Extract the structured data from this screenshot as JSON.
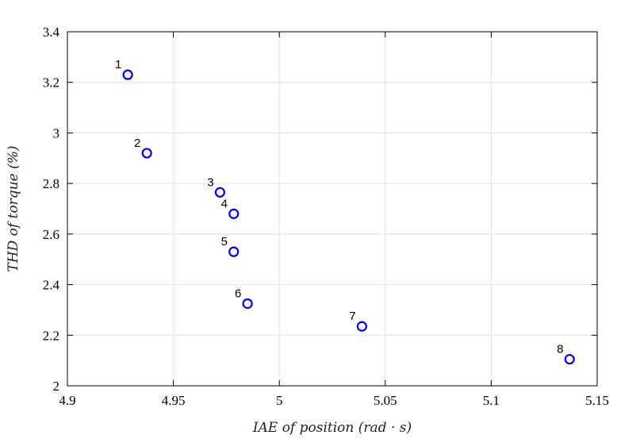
{
  "chart_data": {
    "type": "scatter",
    "xlabel": "IAE of position (rad · s)",
    "ylabel": "THD of torque (%)",
    "xlim": [
      4.9,
      5.15
    ],
    "ylim": [
      2.0,
      3.4
    ],
    "xticks": [
      4.9,
      4.95,
      5.0,
      5.05,
      5.1,
      5.15
    ],
    "xtick_labels": [
      "4.9",
      "4.95",
      "5",
      "5.05",
      "5.1",
      "5.15"
    ],
    "yticks": [
      2.0,
      2.2,
      2.4,
      2.6,
      2.8,
      3.0,
      3.2,
      3.4
    ],
    "ytick_labels": [
      "2",
      "2.2",
      "2.4",
      "2.6",
      "2.8",
      "3",
      "3.2",
      "3.4"
    ],
    "grid": true,
    "marker_color": "#0000ff",
    "points": [
      {
        "label": "1",
        "x": 4.9285,
        "y": 3.23
      },
      {
        "label": "2",
        "x": 4.9375,
        "y": 2.92
      },
      {
        "label": "3",
        "x": 4.972,
        "y": 2.765
      },
      {
        "label": "4",
        "x": 4.9785,
        "y": 2.68
      },
      {
        "label": "5",
        "x": 4.9785,
        "y": 2.53
      },
      {
        "label": "6",
        "x": 4.985,
        "y": 2.325
      },
      {
        "label": "7",
        "x": 5.039,
        "y": 2.235
      },
      {
        "label": "8",
        "x": 5.137,
        "y": 2.105
      }
    ]
  }
}
